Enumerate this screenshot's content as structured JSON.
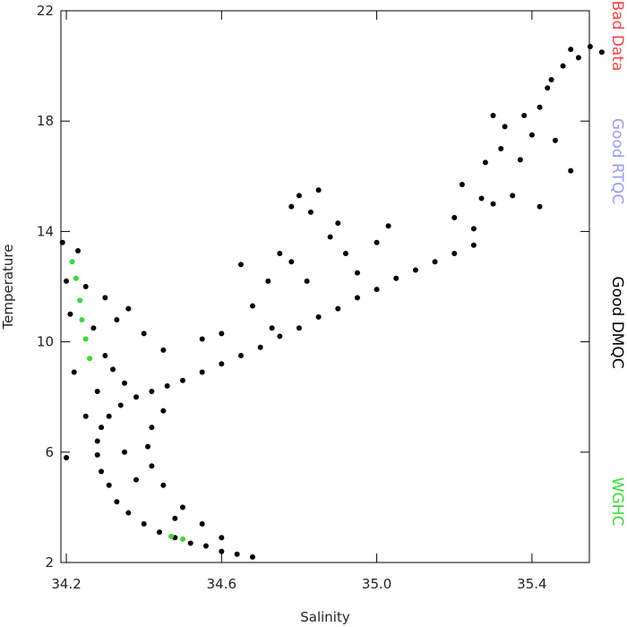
{
  "chart_data": {
    "type": "scatter",
    "xlabel": "Salinity",
    "ylabel": "Temperature",
    "xlim": [
      34.186,
      35.548
    ],
    "ylim": [
      2,
      22
    ],
    "xticks": [
      34.2,
      34.6,
      {
        "value": 35,
        "label": "35.0"
      },
      35.4
    ],
    "yticks": [
      2,
      6,
      10,
      14,
      18,
      22
    ],
    "series": [
      {
        "name": "Bad Data",
        "color": "#ff4040",
        "x": [],
        "y": []
      },
      {
        "name": "Good RTQC",
        "color": "#9999ff",
        "x": [],
        "y": []
      },
      {
        "name": "Good DMQC",
        "color": "#000000",
        "x": [
          34.68,
          34.64,
          34.6,
          34.56,
          34.52,
          34.48,
          34.44,
          34.4,
          34.36,
          34.33,
          34.31,
          34.29,
          34.28,
          34.28,
          34.29,
          34.31,
          34.34,
          34.38,
          34.42,
          34.46,
          34.5,
          34.55,
          34.6,
          34.65,
          34.7,
          34.75,
          34.8,
          34.85,
          34.9,
          34.95,
          35.0,
          35.05,
          35.1,
          35.15,
          35.2,
          35.25,
          34.6,
          34.55,
          34.5,
          34.45,
          34.42,
          34.41,
          34.42,
          34.45,
          34.35,
          34.38,
          34.48,
          34.2,
          34.21,
          34.23,
          34.25,
          34.27,
          34.3,
          34.33,
          34.22,
          34.25,
          34.3,
          34.35,
          34.28,
          34.32,
          34.4,
          34.36,
          34.45,
          34.2,
          34.19,
          34.55,
          34.6,
          34.65,
          34.68,
          34.72,
          34.75,
          34.78,
          34.8,
          34.83,
          34.85,
          34.88,
          34.9,
          34.78,
          34.82,
          34.95,
          35.0,
          35.03,
          34.92,
          34.73,
          35.2,
          35.22,
          35.25,
          35.27,
          35.28,
          35.3,
          35.32,
          35.33,
          35.35,
          35.37,
          35.38,
          35.4,
          35.42,
          35.44,
          35.46,
          35.48,
          35.5,
          35.52,
          35.55,
          35.58,
          35.42,
          35.5,
          35.45,
          35.3
        ],
        "y": [
          2.2,
          2.3,
          2.4,
          2.6,
          2.7,
          2.9,
          3.1,
          3.4,
          3.8,
          4.2,
          4.8,
          5.3,
          5.9,
          6.4,
          6.9,
          7.3,
          7.7,
          8.0,
          8.2,
          8.4,
          8.6,
          8.9,
          9.2,
          9.5,
          9.8,
          10.2,
          10.5,
          10.9,
          11.2,
          11.6,
          11.9,
          12.3,
          12.6,
          12.9,
          13.2,
          13.5,
          2.9,
          3.4,
          4.0,
          4.8,
          5.5,
          6.2,
          6.9,
          7.5,
          6.0,
          5.0,
          3.6,
          12.2,
          11.0,
          13.3,
          12.0,
          10.5,
          11.6,
          10.8,
          8.9,
          7.3,
          9.5,
          8.5,
          8.2,
          9.0,
          10.3,
          11.2,
          9.7,
          5.8,
          13.6,
          10.1,
          10.3,
          12.8,
          11.3,
          12.2,
          13.2,
          14.9,
          15.3,
          14.7,
          15.5,
          13.8,
          14.3,
          12.9,
          12.2,
          12.5,
          13.6,
          14.2,
          13.2,
          10.5,
          14.5,
          15.7,
          14.1,
          15.2,
          16.5,
          15.0,
          17.0,
          17.8,
          15.3,
          16.6,
          18.2,
          17.5,
          18.5,
          19.2,
          17.3,
          20.0,
          20.6,
          20.3,
          20.7,
          20.5,
          14.9,
          16.2,
          19.5,
          18.2
        ]
      },
      {
        "name": "WGHC",
        "color": "#33dd33",
        "x": [
          34.215,
          34.225,
          34.235,
          34.24,
          34.25,
          34.26,
          34.47,
          34.5
        ],
        "y": [
          12.9,
          12.3,
          11.5,
          10.8,
          10.1,
          9.4,
          2.95,
          2.85
        ]
      }
    ]
  }
}
